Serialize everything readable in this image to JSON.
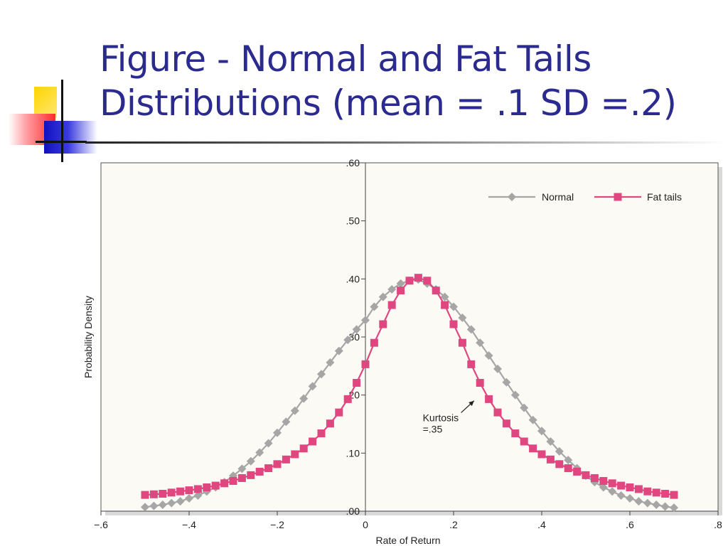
{
  "slide": {
    "title_line1": "Figure - Normal and Fat Tails",
    "title_line2": "Distributions (mean = .1 SD =.2)"
  },
  "colors": {
    "title": "#2b2b8f",
    "normal": "#a6a6a6",
    "fat_tails": "#e0467f",
    "plot_bg": "#fbfaf4"
  },
  "chart_data": {
    "type": "line",
    "xlabel": "Rate of Return",
    "ylabel": "Probability Density",
    "xlim": [
      -0.6,
      0.8
    ],
    "ylim": [
      0,
      0.6
    ],
    "x_ticks": [
      -0.6,
      -0.4,
      -0.2,
      0,
      0.2,
      0.4,
      0.6,
      0.8
    ],
    "x_tick_labels": [
      "−.6",
      "−.4",
      "−.2",
      "0",
      ".2",
      ".4",
      ".6",
      ".8"
    ],
    "y_ticks": [
      0,
      0.1,
      0.2,
      0.3,
      0.4,
      0.5,
      0.6
    ],
    "y_tick_labels": [
      ".00",
      ".10",
      ".20",
      ".30",
      ".40",
      ".50",
      ".60"
    ],
    "grid": false,
    "legend": "top-right",
    "x": [
      -0.5,
      -0.48,
      -0.46,
      -0.44,
      -0.42,
      -0.4,
      -0.38,
      -0.36,
      -0.34,
      -0.32,
      -0.3,
      -0.28,
      -0.26,
      -0.24,
      -0.22,
      -0.2,
      -0.18,
      -0.16,
      -0.14,
      -0.12,
      -0.1,
      -0.08,
      -0.06,
      -0.04,
      -0.02,
      0,
      0.02,
      0.04,
      0.06,
      0.08,
      0.1,
      0.12,
      0.14,
      0.16,
      0.18,
      0.2,
      0.22,
      0.24,
      0.26,
      0.28,
      0.3,
      0.32,
      0.34,
      0.36,
      0.38,
      0.4,
      0.42,
      0.44,
      0.46,
      0.48,
      0.5,
      0.52,
      0.54,
      0.56,
      0.58,
      0.6,
      0.62,
      0.64,
      0.66,
      0.68,
      0.7
    ],
    "series": [
      {
        "name": "Normal",
        "marker": "diamond",
        "values": [
          0.007,
          0.009,
          0.011,
          0.014,
          0.017,
          0.022,
          0.027,
          0.034,
          0.041,
          0.05,
          0.061,
          0.073,
          0.086,
          0.101,
          0.117,
          0.135,
          0.154,
          0.173,
          0.194,
          0.215,
          0.236,
          0.256,
          0.276,
          0.295,
          0.313,
          0.329,
          0.352,
          0.369,
          0.382,
          0.392,
          0.397,
          0.399,
          0.392,
          0.382,
          0.369,
          0.352,
          0.333,
          0.313,
          0.29,
          0.268,
          0.245,
          0.222,
          0.2,
          0.178,
          0.157,
          0.138,
          0.12,
          0.103,
          0.088,
          0.074,
          0.061,
          0.05,
          0.041,
          0.034,
          0.027,
          0.022,
          0.017,
          0.014,
          0.011,
          0.008,
          0.006
        ]
      },
      {
        "name": "Fat tails",
        "marker": "square",
        "values": [
          0.028,
          0.029,
          0.03,
          0.032,
          0.034,
          0.036,
          0.038,
          0.041,
          0.044,
          0.048,
          0.052,
          0.057,
          0.062,
          0.068,
          0.074,
          0.081,
          0.089,
          0.098,
          0.108,
          0.12,
          0.134,
          0.151,
          0.17,
          0.193,
          0.221,
          0.253,
          0.29,
          0.322,
          0.355,
          0.38,
          0.397,
          0.402,
          0.397,
          0.38,
          0.355,
          0.322,
          0.29,
          0.253,
          0.221,
          0.193,
          0.17,
          0.151,
          0.134,
          0.12,
          0.108,
          0.098,
          0.089,
          0.081,
          0.074,
          0.068,
          0.062,
          0.057,
          0.052,
          0.048,
          0.044,
          0.041,
          0.038,
          0.034,
          0.032,
          0.03,
          0.028
        ]
      }
    ],
    "annotations": [
      {
        "text_line1": "Kurtosis",
        "text_line2": "=.35",
        "x": 0.13,
        "y": 0.155,
        "arrow_to": [
          0.24,
          0.195
        ]
      }
    ]
  }
}
